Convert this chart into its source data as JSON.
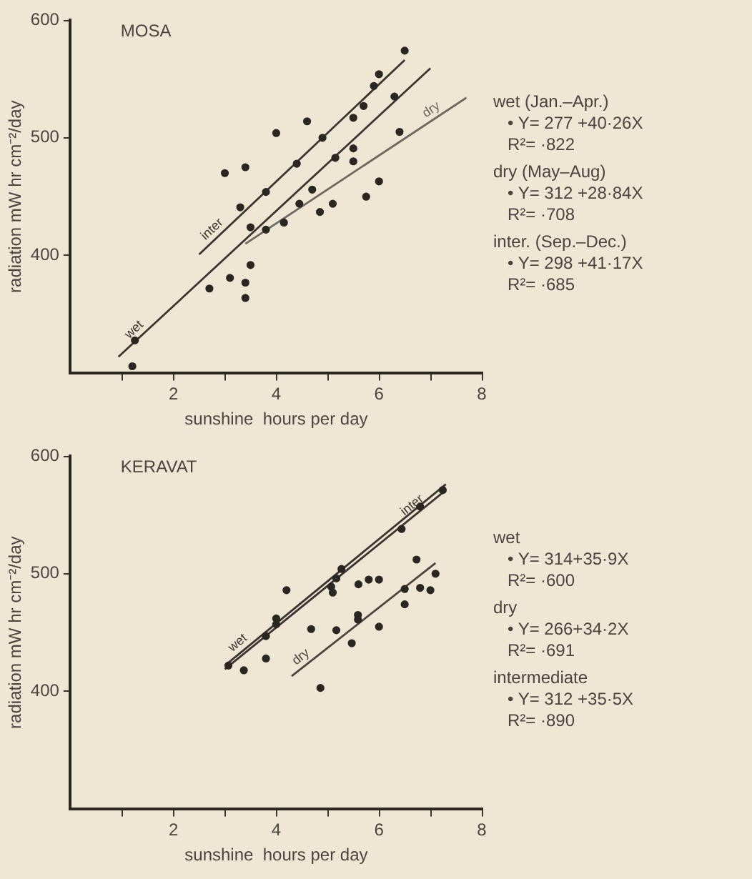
{
  "chart_data": [
    {
      "type": "scatter",
      "title": "MOSA",
      "xlabel": "sunshine  hours per day",
      "ylabel": "radiation mW hr cm⁻²/day",
      "xlim": [
        0,
        8
      ],
      "ylim": [
        300,
        600
      ],
      "xticks": [
        {
          "value": 1,
          "label": null
        },
        2,
        {
          "value": 3,
          "label": null
        },
        4,
        {
          "value": 5,
          "label": null
        },
        6,
        {
          "value": 7,
          "label": null
        },
        8
      ],
      "yticks": [
        400,
        500,
        600
      ],
      "grid": false,
      "legend": false,
      "series": [
        {
          "marker": "circle",
          "color": "#2a2622",
          "x": [
            1.2,
            1.25,
            2.7,
            3.0,
            3.1,
            3.3,
            3.4,
            3.4,
            3.4,
            3.5,
            3.5,
            3.8,
            3.8,
            4.0,
            4.15,
            4.4,
            4.45,
            4.6,
            4.7,
            4.85,
            4.9,
            5.1,
            5.15,
            5.5,
            5.5,
            5.5,
            5.7,
            5.75,
            5.9,
            6.0,
            6.0,
            6.3,
            6.5,
            6.4
          ],
          "values": [
            306,
            328,
            372,
            470,
            381,
            441,
            364,
            377,
            475,
            392,
            424,
            422,
            454,
            504,
            428,
            478,
            444,
            514,
            456,
            437,
            500,
            444,
            483,
            480,
            491,
            517,
            527,
            450,
            544,
            463,
            554,
            535,
            574,
            505
          ]
        },
        {
          "type": "line",
          "name": "inter",
          "color": "#3a3530",
          "x": [
            2.5,
            6.5
          ],
          "values": [
            401,
            566
          ]
        },
        {
          "type": "line",
          "name": "dry",
          "color": "#6e6860",
          "x": [
            3.4,
            7.7
          ],
          "values": [
            410,
            534
          ]
        },
        {
          "type": "line",
          "name": "wet",
          "color": "#3a3530",
          "x": [
            0.93,
            7.0
          ],
          "values": [
            314,
            559
          ]
        }
      ],
      "annotations": [
        "wet (Jan.–Apr.)",
        "• Y= 277 +40·26X",
        "R²= ·822",
        "dry (May–Aug)",
        "• Y= 312 +28·84X",
        "R²= ·708",
        "inter. (Sep.–Dec.)",
        "• Y= 298 +41·17X",
        "R²= ·685"
      ]
    },
    {
      "type": "scatter",
      "title": "KERAVAT",
      "xlabel": "sunshine  hours per day",
      "ylabel": "radiation mW hr cm⁻²/day",
      "xlim": [
        0,
        8
      ],
      "ylim": [
        300,
        600
      ],
      "xticks": [
        {
          "value": 1,
          "label": null
        },
        2,
        {
          "value": 3,
          "label": null
        },
        4,
        {
          "value": 5,
          "label": null
        },
        6,
        {
          "value": 7,
          "label": null
        },
        8
      ],
      "yticks": [
        400,
        500,
        600
      ],
      "grid": false,
      "legend": false,
      "series": [
        {
          "marker": "circle",
          "color": "#2a2622",
          "x": [
            3.07,
            3.37,
            3.8,
            3.8,
            4.0,
            4.0,
            4.2,
            4.68,
            4.86,
            5.07,
            5.1,
            5.17,
            5.22,
            5.27,
            5.17,
            5.47,
            5.6,
            5.59,
            5.59,
            5.8,
            6.0,
            6.0,
            6.44,
            6.8,
            7.24,
            6.73,
            7.1,
            6.5,
            6.5,
            6.8,
            7.0
          ],
          "values": [
            422,
            418,
            428,
            447,
            457,
            462,
            486,
            453,
            403,
            489,
            484,
            496,
            null,
            504,
            452,
            441,
            491,
            461,
            465,
            495,
            495,
            455,
            538,
            557,
            571,
            512,
            500,
            487,
            474,
            488,
            486
          ]
        },
        {
          "type": "line",
          "name": "dry",
          "color": "#4a453f",
          "x": [
            4.3,
            7.1
          ],
          "values": [
            413,
            509
          ]
        },
        {
          "type": "line",
          "name": "inter",
          "color": "#3a3530",
          "x": [
            3.0,
            7.3
          ],
          "values": [
            419,
            571
          ]
        },
        {
          "type": "line",
          "name": "wet",
          "color": "#3a3530",
          "x": [
            3.0,
            7.3
          ],
          "values": [
            422,
            576
          ]
        }
      ],
      "annotations": [
        "wet",
        "• Y= 314+35·9X",
        "R²= ·600",
        "dry",
        "• Y= 266+34·2X",
        "R²= ·691",
        "intermediate",
        "• Y= 312 +35·5X",
        "R²= ·890"
      ]
    }
  ]
}
